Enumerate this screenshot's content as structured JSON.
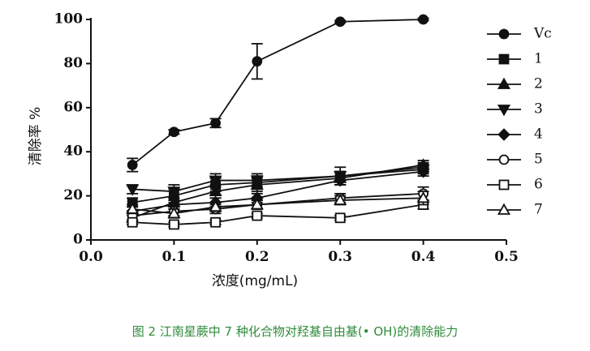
{
  "caption": "图 2 江南星蕨中 7 种化合物对羟基自由基(• OH)的清除能力",
  "chart_data": {
    "type": "line",
    "xlabel": "浓度(mg/mL)",
    "ylabel": "清除率 %",
    "xlim": [
      0.0,
      0.5
    ],
    "ylim": [
      0,
      100
    ],
    "x_ticks": [
      "0.0",
      "0.1",
      "0.2",
      "0.3",
      "0.4",
      "0.5"
    ],
    "y_ticks": [
      "0",
      "20",
      "40",
      "60",
      "80",
      "100"
    ],
    "legend_position": "right",
    "x": [
      0.05,
      0.1,
      0.15,
      0.2,
      0.3,
      0.4
    ],
    "series": [
      {
        "name": "Vc",
        "marker": "circle-filled",
        "values": [
          34,
          49,
          53,
          81,
          99,
          100
        ],
        "errors": [
          3,
          1,
          2,
          8,
          0.5,
          0.5
        ]
      },
      {
        "name": "1",
        "marker": "square-filled",
        "values": [
          17,
          20,
          25,
          26,
          29,
          33
        ],
        "errors": [
          2,
          3,
          3,
          3,
          2,
          2
        ]
      },
      {
        "name": "2",
        "marker": "triangle-up-filled",
        "values": [
          10,
          17,
          22,
          25,
          28,
          34
        ],
        "errors": [
          2,
          2,
          3,
          3,
          3,
          2
        ]
      },
      {
        "name": "3",
        "marker": "triangle-down-filled",
        "values": [
          23,
          22,
          27,
          27,
          29,
          32
        ],
        "errors": [
          2,
          3,
          3,
          3,
          4,
          2
        ]
      },
      {
        "name": "4",
        "marker": "diamond-filled",
        "values": [
          13,
          16,
          17,
          19,
          27,
          31
        ],
        "errors": [
          2,
          2,
          2,
          2,
          2,
          2
        ]
      },
      {
        "name": "5",
        "marker": "circle-open",
        "values": [
          11,
          13,
          14,
          16,
          19,
          21
        ],
        "errors": [
          2,
          2,
          2,
          2,
          2,
          3
        ]
      },
      {
        "name": "6",
        "marker": "square-open",
        "values": [
          8,
          7,
          8,
          11,
          10,
          16
        ],
        "errors": [
          1,
          1,
          1,
          1,
          1,
          2
        ]
      },
      {
        "name": "7",
        "marker": "triangle-up-open",
        "values": [
          14,
          12,
          15,
          16,
          18,
          19
        ],
        "errors": [
          2,
          2,
          2,
          2,
          2,
          3
        ]
      }
    ]
  }
}
